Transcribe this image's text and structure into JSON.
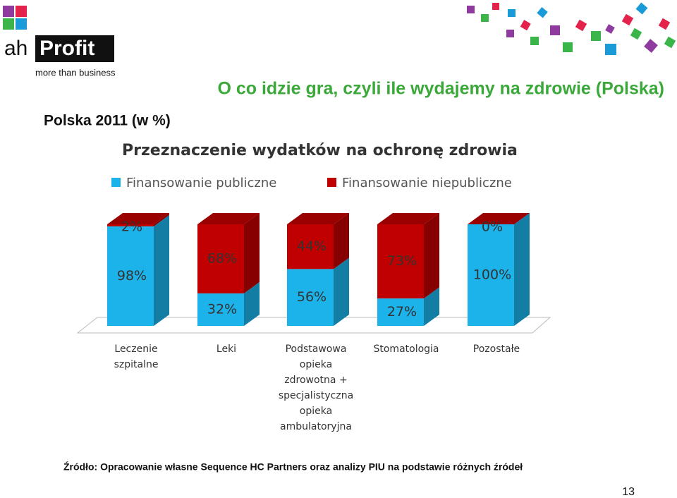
{
  "logo": {
    "prefix": "ah",
    "name": "Profit",
    "tagline": "more than business"
  },
  "slide_title": "O co idzie gra, czyli ile wydajemy na zdrowie (Polska)",
  "subtitle": "Polska 2011 (w %)",
  "chart_data": {
    "type": "stacked-bar-3d",
    "title": "Przeznaczenie wydatków na ochronę zdrowia",
    "categories": [
      "Leczenie\nszpitalne",
      "Leki",
      "Podstawowa\nopieka\nzdrowotna +\nspecjalistyczna\nopieka\nambulatoryjna",
      "Stomatologia",
      "Pozostałe"
    ],
    "series": [
      {
        "name": "Finansowanie publiczne",
        "color": "#1cb2ea",
        "values": [
          98,
          32,
          56,
          27,
          100
        ],
        "value_labels": [
          "98%",
          "32%",
          "56%",
          "27%",
          "100%"
        ]
      },
      {
        "name": "Finansowanie niepubliczne",
        "color": "#c00000",
        "values": [
          2,
          68,
          44,
          73,
          0
        ],
        "value_labels": [
          "2%",
          "68%",
          "44%",
          "73%",
          "0%"
        ]
      }
    ],
    "ylim": [
      0,
      100
    ],
    "legend": "top"
  },
  "source": "Źródło: Opracowanie własne Sequence HC Partners oraz  analizy PIU na podstawie różnych źródeł",
  "page_number": "13"
}
